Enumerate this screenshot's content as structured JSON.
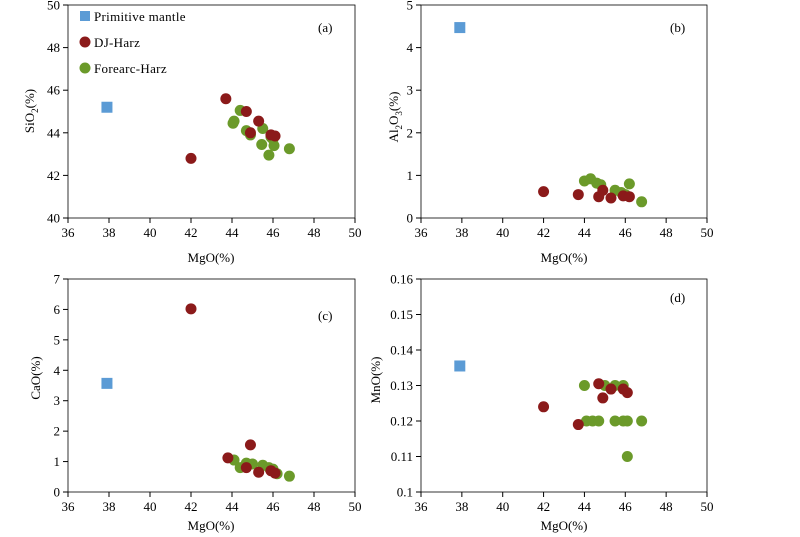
{
  "colors": {
    "primitive": "#5b9bd5",
    "dj": "#8b1a1a",
    "forearc": "#6b9a2a"
  },
  "legend": [
    {
      "key": "primitive",
      "label": "Primitive mantle",
      "shape": "square"
    },
    {
      "key": "dj",
      "label": "DJ-Harz",
      "shape": "circle"
    },
    {
      "key": "forearc",
      "label": "Forearc-Harz",
      "shape": "circle"
    }
  ],
  "chart_data": [
    {
      "type": "scatter",
      "panel_label": "(a)",
      "xlabel": "MgO(%)",
      "ylabel": {
        "main": "SiO",
        "sub": "2",
        "tail": "(%)"
      },
      "xlim": [
        36,
        50
      ],
      "ylim": [
        40,
        50
      ],
      "xticks": [
        "36",
        "38",
        "40",
        "42",
        "44",
        "46",
        "48",
        "50"
      ],
      "yticks": [
        "40",
        "42",
        "44",
        "46",
        "48",
        "50"
      ],
      "series": [
        {
          "key": "primitive",
          "name": "Primitive mantle",
          "points": [
            [
              37.9,
              45.2
            ]
          ]
        },
        {
          "key": "dj",
          "name": "DJ-Harz",
          "points": [
            [
              42.0,
              42.8
            ],
            [
              43.7,
              45.6
            ],
            [
              44.7,
              45.0
            ],
            [
              45.3,
              44.55
            ],
            [
              44.9,
              44.0
            ],
            [
              45.9,
              43.9
            ],
            [
              46.1,
              43.85
            ]
          ]
        },
        {
          "key": "forearc",
          "name": "Forearc-Harz",
          "points": [
            [
              44.4,
              45.05
            ],
            [
              44.1,
              44.55
            ],
            [
              44.05,
              44.45
            ],
            [
              44.7,
              44.1
            ],
            [
              44.9,
              43.9
            ],
            [
              45.5,
              44.2
            ],
            [
              45.9,
              43.8
            ],
            [
              46.0,
              43.7
            ],
            [
              46.05,
              43.4
            ],
            [
              45.45,
              43.45
            ],
            [
              45.8,
              42.95
            ],
            [
              46.8,
              43.25
            ]
          ]
        }
      ]
    },
    {
      "type": "scatter",
      "panel_label": "(b)",
      "xlabel": "MgO(%)",
      "ylabel": {
        "main": "Al",
        "sub": "2",
        "mid": "O",
        "sub2": "3",
        "tail": "(%)"
      },
      "xlim": [
        36,
        50
      ],
      "ylim": [
        0,
        5
      ],
      "xticks": [
        "36",
        "38",
        "40",
        "42",
        "44",
        "46",
        "48",
        "50"
      ],
      "yticks": [
        "0",
        "1",
        "2",
        "3",
        "4",
        "5"
      ],
      "series": [
        {
          "key": "primitive",
          "name": "Primitive mantle",
          "points": [
            [
              37.9,
              4.47
            ]
          ]
        },
        {
          "key": "dj",
          "name": "DJ-Harz",
          "points": [
            [
              42.0,
              0.62
            ],
            [
              43.7,
              0.55
            ],
            [
              44.7,
              0.5
            ],
            [
              44.9,
              0.65
            ],
            [
              45.3,
              0.47
            ],
            [
              45.9,
              0.52
            ],
            [
              46.2,
              0.5
            ]
          ]
        },
        {
          "key": "forearc",
          "name": "Forearc-Harz",
          "points": [
            [
              44.0,
              0.87
            ],
            [
              44.3,
              0.92
            ],
            [
              44.6,
              0.82
            ],
            [
              44.8,
              0.78
            ],
            [
              45.5,
              0.65
            ],
            [
              45.8,
              0.6
            ],
            [
              46.0,
              0.55
            ],
            [
              46.2,
              0.8
            ],
            [
              46.8,
              0.38
            ]
          ]
        }
      ]
    },
    {
      "type": "scatter",
      "panel_label": "(c)",
      "xlabel": "MgO(%)",
      "ylabel": {
        "main": "CaO(%)"
      },
      "xlim": [
        36,
        50
      ],
      "ylim": [
        0,
        7
      ],
      "xticks": [
        "36",
        "38",
        "40",
        "42",
        "44",
        "46",
        "48",
        "50"
      ],
      "yticks": [
        "0",
        "1",
        "2",
        "3",
        "4",
        "5",
        "6",
        "7"
      ],
      "series": [
        {
          "key": "primitive",
          "name": "Primitive mantle",
          "points": [
            [
              37.9,
              3.57
            ]
          ]
        },
        {
          "key": "dj",
          "name": "DJ-Harz",
          "points": [
            [
              42.0,
              6.02
            ],
            [
              43.8,
              1.12
            ],
            [
              44.9,
              1.55
            ],
            [
              44.7,
              0.8
            ],
            [
              45.3,
              0.65
            ],
            [
              45.9,
              0.7
            ],
            [
              46.1,
              0.62
            ]
          ]
        },
        {
          "key": "forearc",
          "name": "Forearc-Harz",
          "points": [
            [
              44.1,
              1.05
            ],
            [
              44.4,
              0.8
            ],
            [
              44.7,
              0.95
            ],
            [
              45.0,
              0.92
            ],
            [
              45.5,
              0.88
            ],
            [
              45.8,
              0.8
            ],
            [
              46.0,
              0.75
            ],
            [
              46.2,
              0.6
            ],
            [
              46.8,
              0.52
            ]
          ]
        }
      ]
    },
    {
      "type": "scatter",
      "panel_label": "(d)",
      "xlabel": "MgO(%)",
      "ylabel": {
        "main": "MnO(%)"
      },
      "xlim": [
        36,
        50
      ],
      "ylim": [
        0.1,
        0.16
      ],
      "xticks": [
        "36",
        "38",
        "40",
        "42",
        "44",
        "46",
        "48",
        "50"
      ],
      "yticks": [
        "0.1",
        "0.11",
        "0.12",
        "0.13",
        "0.14",
        "0.15",
        "0.16"
      ],
      "series": [
        {
          "key": "primitive",
          "name": "Primitive mantle",
          "points": [
            [
              37.9,
              0.1355
            ]
          ]
        },
        {
          "key": "dj",
          "name": "DJ-Harz",
          "points": [
            [
              42.0,
              0.124
            ],
            [
              43.7,
              0.119
            ],
            [
              44.7,
              0.1305
            ],
            [
              44.9,
              0.1265
            ],
            [
              45.3,
              0.129
            ],
            [
              45.9,
              0.129
            ],
            [
              46.1,
              0.128
            ]
          ]
        },
        {
          "key": "forearc",
          "name": "Forearc-Harz",
          "points": [
            [
              44.0,
              0.13
            ],
            [
              44.1,
              0.12
            ],
            [
              44.4,
              0.12
            ],
            [
              44.7,
              0.12
            ],
            [
              45.0,
              0.13
            ],
            [
              45.5,
              0.13
            ],
            [
              45.5,
              0.12
            ],
            [
              45.9,
              0.13
            ],
            [
              45.9,
              0.12
            ],
            [
              46.1,
              0.12
            ],
            [
              46.8,
              0.12
            ],
            [
              46.1,
              0.11
            ]
          ]
        }
      ]
    }
  ]
}
